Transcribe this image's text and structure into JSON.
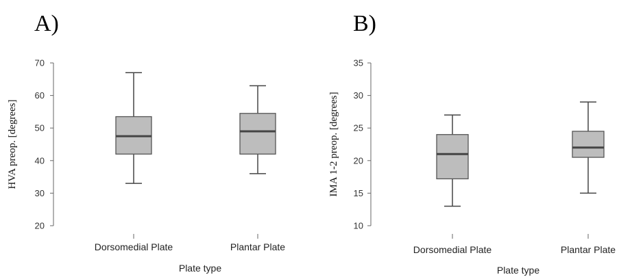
{
  "chart_data": [
    {
      "type": "box",
      "panel_label": "A)",
      "xlabel": "Plate type",
      "ylabel": "HVA  preop. [degrees]",
      "ylim": [
        20,
        70
      ],
      "yticks": [
        20,
        30,
        40,
        50,
        60,
        70
      ],
      "categories": [
        "Dorsomedial Plate",
        "Plantar Plate"
      ],
      "boxes": [
        {
          "min": 33,
          "q1": 42,
          "median": 47.5,
          "q3": 53.5,
          "max": 67
        },
        {
          "min": 36,
          "q1": 42,
          "median": 49,
          "q3": 54.5,
          "max": 63
        }
      ],
      "box_color": "#bdbdbd",
      "grid": false
    },
    {
      "type": "box",
      "panel_label": "B)",
      "xlabel": "Plate type",
      "ylabel": "IMA 1-2 preop. [degrees]",
      "ylim": [
        10,
        35
      ],
      "yticks": [
        10,
        15,
        20,
        25,
        30,
        35
      ],
      "categories": [
        "Dorsomedial Plate",
        "Plantar Plate"
      ],
      "boxes": [
        {
          "min": 13,
          "q1": 17.2,
          "median": 21,
          "q3": 24,
          "max": 27
        },
        {
          "min": 15,
          "q1": 20.5,
          "median": 22,
          "q3": 24.5,
          "max": 29
        }
      ],
      "box_color": "#bdbdbd",
      "grid": false
    }
  ]
}
